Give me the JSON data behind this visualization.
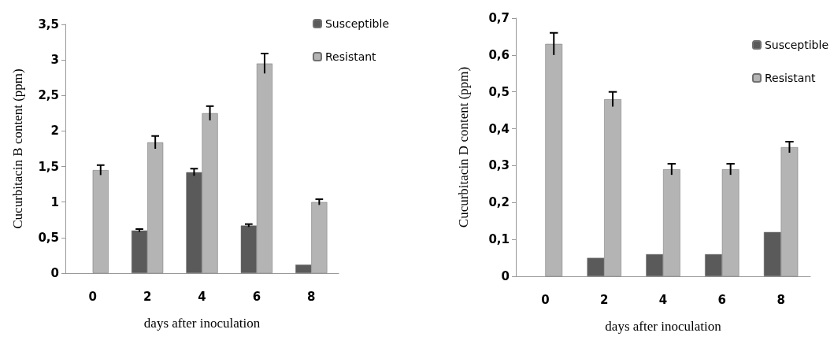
{
  "chart_data": [
    {
      "type": "bar",
      "categories": [
        "0",
        "2",
        "4",
        "6",
        "8"
      ],
      "xlabel": "days after inoculation",
      "ylabel": "Cucurbitacin B content (ppm)",
      "series": [
        {
          "name": "Susceptible",
          "color": "#5a5a5a",
          "values": [
            null,
            0.6,
            1.42,
            0.67,
            0.12
          ],
          "errors": [
            null,
            0.02,
            0.05,
            0.02,
            null
          ]
        },
        {
          "name": "Resistant",
          "color": "#b4b4b4",
          "values": [
            1.45,
            1.84,
            2.25,
            2.95,
            1.0
          ],
          "errors": [
            0.07,
            0.09,
            0.1,
            0.14,
            0.04
          ]
        }
      ],
      "ylim": [
        0,
        3.5
      ],
      "yticks": [
        0,
        {
          "value": 0.5,
          "label": "0,5"
        },
        1,
        {
          "value": 1.5,
          "label": "1,5"
        },
        2,
        {
          "value": 2.5,
          "label": "2,5"
        },
        3,
        {
          "value": 3.5,
          "label": "3,5"
        }
      ],
      "grid": false,
      "legend": "top right"
    },
    {
      "type": "bar",
      "categories": [
        "0",
        "2",
        "4",
        "6",
        "8"
      ],
      "xlabel": "days after inoculation",
      "ylabel": "Cucurbitacin D content (ppm)",
      "series": [
        {
          "name": "Susceptible",
          "color": "#5a5a5a",
          "values": [
            null,
            0.05,
            0.06,
            0.06,
            0.12
          ],
          "errors": [
            null,
            null,
            null,
            null,
            null
          ]
        },
        {
          "name": "Resistant",
          "color": "#b4b4b4",
          "values": [
            0.63,
            0.48,
            0.29,
            0.29,
            0.35
          ],
          "errors": [
            0.03,
            0.02,
            0.015,
            0.015,
            0.015
          ]
        }
      ],
      "ylim": [
        0,
        0.7
      ],
      "yticks": [
        0,
        {
          "value": 0.1,
          "label": "0,1"
        },
        {
          "value": 0.2,
          "label": "0,2"
        },
        {
          "value": 0.3,
          "label": "0,3"
        },
        {
          "value": 0.4,
          "label": "0,4"
        },
        {
          "value": 0.5,
          "label": "0,5"
        },
        {
          "value": 0.6,
          "label": "0,6"
        },
        {
          "value": 0.7,
          "label": "0,7"
        }
      ],
      "grid": false,
      "legend": "top right"
    }
  ]
}
